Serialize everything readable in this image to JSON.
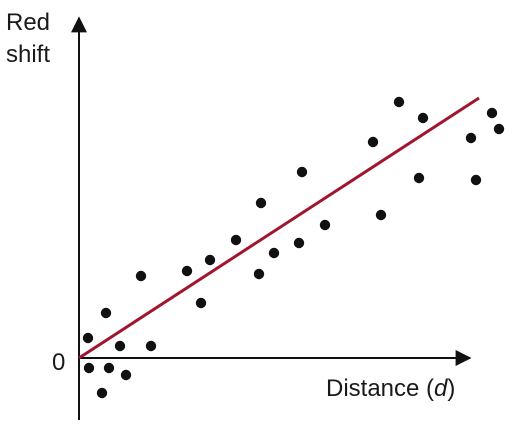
{
  "chart_data": {
    "type": "scatter",
    "title": "",
    "ylabel_line1": "Red",
    "ylabel_line2": "shift",
    "xlabel_main": "Distance (",
    "xlabel_var": "d",
    "xlabel_close": ")",
    "origin_label": "0",
    "xlim": [
      0,
      420
    ],
    "ylim": [
      -55,
      290
    ],
    "grid": false,
    "legend": "none",
    "colors": {
      "points": "#111111",
      "fit_line": "#a0162e",
      "axes": "#111111"
    },
    "series": [
      {
        "kind": "points",
        "points": [
          [
            9,
            20
          ],
          [
            10,
            -10
          ],
          [
            23,
            -35
          ],
          [
            27,
            45
          ],
          [
            30,
            -10
          ],
          [
            41,
            12
          ],
          [
            47,
            -17
          ],
          [
            62,
            82
          ],
          [
            72,
            12
          ],
          [
            108,
            87
          ],
          [
            122,
            55
          ],
          [
            131,
            98
          ],
          [
            157,
            118
          ],
          [
            180,
            84
          ],
          [
            182,
            155
          ],
          [
            195,
            105
          ],
          [
            220,
            115
          ],
          [
            223,
            186
          ],
          [
            246,
            133
          ],
          [
            294,
            216
          ],
          [
            302,
            143
          ],
          [
            320,
            256
          ],
          [
            340,
            180
          ],
          [
            344,
            240
          ],
          [
            392,
            220
          ],
          [
            397,
            178
          ],
          [
            413,
            245
          ],
          [
            420,
            229
          ]
        ]
      },
      {
        "kind": "fit_line",
        "points": [
          [
            0,
            0
          ],
          [
            400,
            260
          ]
        ]
      }
    ]
  }
}
